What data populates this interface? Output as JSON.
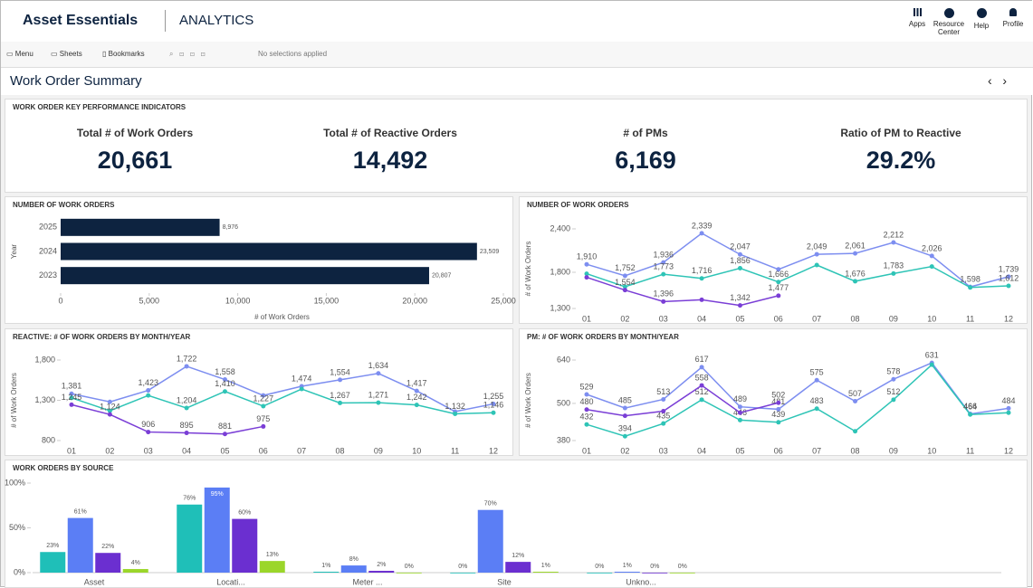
{
  "header": {
    "brand": "Asset Essentials",
    "section": "ANALYTICS",
    "nav": [
      "Apps",
      "Resource Center",
      "Help",
      "Profile"
    ]
  },
  "toolbar": {
    "items": [
      "Menu",
      "Sheets",
      "Bookmarks"
    ],
    "selections": "No selections applied"
  },
  "sheet_title": "Work Order Summary",
  "kpi_section": {
    "title": "WORK ORDER KEY PERFORMANCE INDICATORS",
    "kpis": [
      {
        "label": "Total # of Work Orders",
        "value": "20,661"
      },
      {
        "label": "Total # of Reactive Orders",
        "value": "14,492"
      },
      {
        "label": "# of PMs",
        "value": "6,169"
      },
      {
        "label": "Ratio of PM to Reactive",
        "value": "29.2%"
      }
    ]
  },
  "chart_data": [
    {
      "type": "bar",
      "horizontal": true,
      "title": "NUMBER OF WORK ORDERS",
      "categories": [
        "2025",
        "2024",
        "2023"
      ],
      "values": [
        8976,
        23509,
        20807
      ],
      "value_labels": [
        "8,976",
        "23,509",
        "20,807"
      ],
      "color": "#0d2340",
      "xlim": [
        0,
        25000
      ],
      "xticks": [
        0,
        {
          "value": 5000,
          "label": "5,000"
        },
        {
          "value": 10000,
          "label": "10,000"
        },
        {
          "value": 15000,
          "label": "15,000"
        },
        {
          "value": 20000,
          "label": "20,000"
        },
        {
          "value": 25000,
          "label": "25,000"
        }
      ],
      "x_label": "# of Work Orders",
      "y_label": "Year"
    },
    {
      "type": "line",
      "title": "NUMBER OF WORK ORDERS",
      "categories": [
        "01",
        "02",
        "03",
        "04",
        "05",
        "06",
        "07",
        "08",
        "09",
        "10",
        "11",
        "12"
      ],
      "ylim": [
        1300,
        2400
      ],
      "yticks": [
        {
          "value": 1300,
          "label": "1,300"
        },
        {
          "value": 1800,
          "label": "1,800"
        },
        {
          "value": 2400,
          "label": "2,400"
        }
      ],
      "y_label": "# of Work Orders",
      "series": [
        {
          "color": "#7d8ef0",
          "values": [
            1910,
            1752,
            1936,
            2339,
            2047,
            1840,
            2049,
            2061,
            2212,
            2026,
            1598,
            1739
          ],
          "value_labels": [
            "1,910",
            "1,752",
            "1,936",
            "2,339",
            "2,047",
            null,
            "2,049",
            "2,061",
            "2,212",
            "2,026",
            "1,598",
            "1,739"
          ]
        },
        {
          "color": "#2ec4b6",
          "values": [
            1780,
            1600,
            1773,
            1716,
            1856,
            1666,
            1900,
            1676,
            1783,
            1880,
            1590,
            1612
          ],
          "value_labels": [
            null,
            null,
            "1,773",
            "1,716",
            "1,856",
            "1,666",
            null,
            "1,676",
            "1,783",
            null,
            null,
            "1,612"
          ]
        },
        {
          "color": "#7a3ed6",
          "values": [
            1730,
            1554,
            1396,
            1420,
            1342,
            1477,
            null,
            null,
            null,
            null,
            null,
            null
          ],
          "value_labels": [
            null,
            "1,554",
            "1,396",
            null,
            "1,342",
            "1,477",
            null,
            null,
            null,
            null,
            null,
            null
          ]
        }
      ]
    },
    {
      "type": "line",
      "title": "REACTIVE: # OF WORK ORDERS BY MONTH/YEAR",
      "categories": [
        "01",
        "02",
        "03",
        "04",
        "05",
        "06",
        "07",
        "08",
        "09",
        "10",
        "11",
        "12"
      ],
      "ylim": [
        800,
        1800
      ],
      "yticks": [
        800,
        {
          "value": 1300,
          "label": "1,300"
        },
        {
          "value": 1800,
          "label": "1,800"
        }
      ],
      "y_label": "# of Work Orders",
      "series": [
        {
          "color": "#7d8ef0",
          "values": [
            1381,
            1280,
            1423,
            1722,
            1558,
            1360,
            1474,
            1554,
            1634,
            1417,
            1160,
            1255
          ],
          "value_labels": [
            "1,381",
            null,
            "1,423",
            "1,722",
            "1,558",
            null,
            "1,474",
            "1,554",
            "1,634",
            "1,417",
            null,
            "1,255"
          ]
        },
        {
          "color": "#2ec4b6",
          "values": [
            1330,
            1170,
            1360,
            1204,
            1410,
            1227,
            1440,
            1267,
            1271,
            1242,
            1132,
            1146
          ],
          "value_labels": [
            null,
            null,
            null,
            "1,204",
            "1,410",
            "1,227",
            null,
            "1,267",
            "1,271",
            "1,242",
            "1,132",
            "1,146"
          ]
        },
        {
          "color": "#7a3ed6",
          "values": [
            1245,
            1124,
            906,
            895,
            881,
            975,
            null,
            null,
            null,
            null,
            null,
            null
          ],
          "value_labels": [
            "1,245",
            "1,124",
            "906",
            "895",
            "881",
            "975",
            null,
            null,
            null,
            null,
            null,
            null
          ]
        }
      ]
    },
    {
      "type": "line",
      "title": "PM: # OF WORK ORDERS BY MONTH/YEAR",
      "categories": [
        "01",
        "02",
        "03",
        "04",
        "05",
        "06",
        "07",
        "08",
        "09",
        "10",
        "11",
        "12"
      ],
      "ylim": [
        380,
        640
      ],
      "yticks": [
        380,
        500,
        640
      ],
      "y_label": "# of Work Orders",
      "series": [
        {
          "color": "#7d8ef0",
          "values": [
            529,
            485,
            513,
            617,
            489,
            481,
            575,
            507,
            578,
            631,
            466,
            484
          ]
        },
        {
          "color": "#2ec4b6",
          "values": [
            432,
            394,
            435,
            512,
            446,
            439,
            483,
            410,
            512,
            625,
            464,
            470
          ],
          "value_labels": [
            "432",
            "394",
            "435",
            "512",
            "446",
            "439",
            "483",
            null,
            "512",
            null,
            "464",
            null
          ]
        },
        {
          "color": "#7a3ed6",
          "values": [
            480,
            460,
            475,
            558,
            470,
            502,
            null,
            null,
            null,
            null,
            null,
            null
          ],
          "value_labels": [
            "480",
            null,
            null,
            "558",
            null,
            "502",
            null,
            null,
            null,
            null,
            null,
            null
          ]
        }
      ]
    },
    {
      "type": "bar",
      "title": "WORK ORDERS BY SOURCE",
      "categories": [
        "Asset",
        "Locati...",
        "Meter ...",
        "Site",
        "Unkno..."
      ],
      "ylim": [
        0,
        100
      ],
      "yticks": [
        {
          "value": 0,
          "label": "0%"
        },
        {
          "value": 50,
          "label": "50%"
        },
        {
          "value": 100,
          "label": "100%"
        }
      ],
      "series": [
        {
          "color": "#1fbfb8",
          "values": [
            23,
            76,
            1,
            0,
            0
          ],
          "value_labels": [
            "23%",
            "76%",
            "1%",
            "0%",
            "0%"
          ]
        },
        {
          "color": "#5b7ef5",
          "values": [
            61,
            95,
            8,
            70,
            1
          ],
          "value_labels": [
            "61%",
            "95%",
            "8%",
            "70%",
            "1%"
          ]
        },
        {
          "color": "#6b2fd0",
          "values": [
            22,
            60,
            2,
            12,
            0
          ],
          "value_labels": [
            "22%",
            "60%",
            "2%",
            "12%",
            "0%"
          ]
        },
        {
          "color": "#9bd62a",
          "values": [
            4,
            13,
            0,
            1,
            0
          ],
          "value_labels": [
            "4%",
            "13%",
            "0%",
            "1%",
            "0%"
          ]
        }
      ]
    }
  ]
}
